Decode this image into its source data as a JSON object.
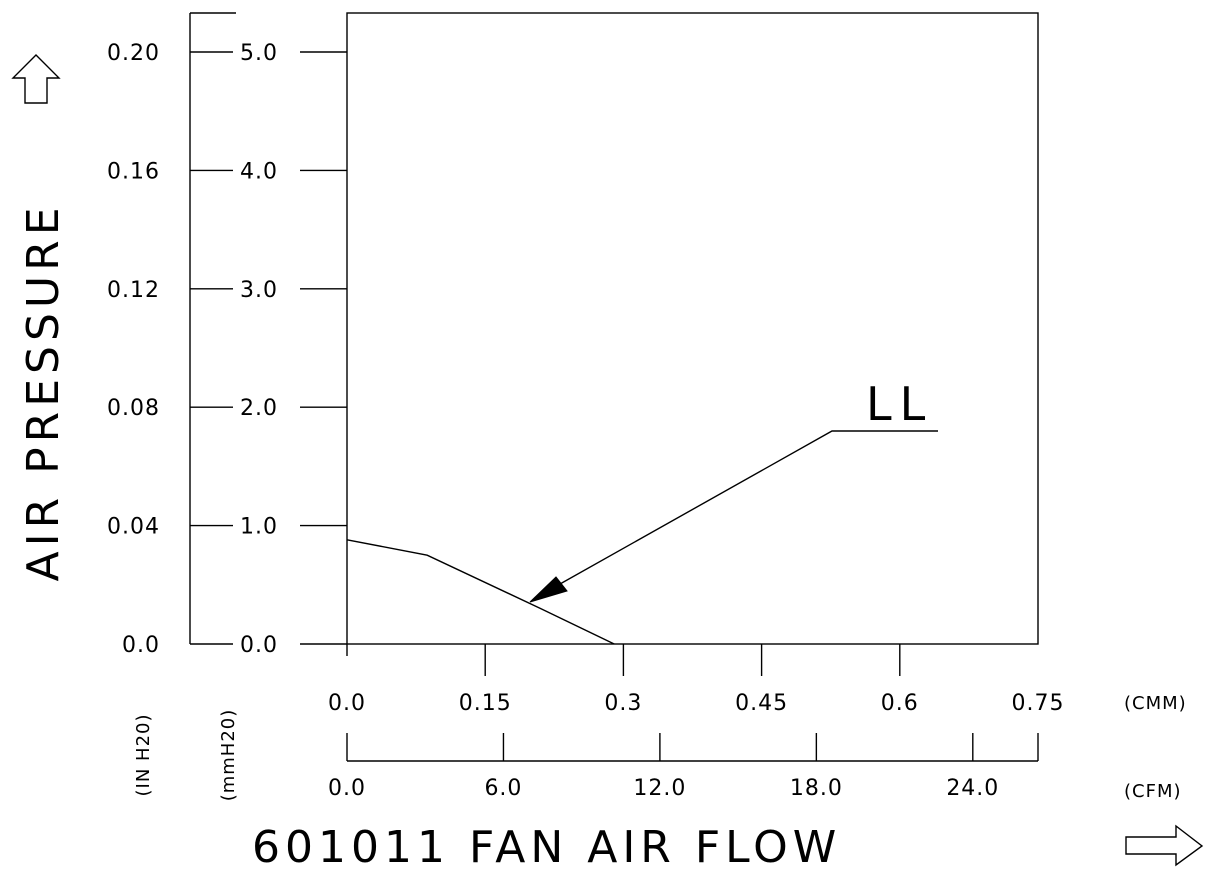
{
  "chart_data": {
    "type": "line",
    "title": "",
    "xlabel": "601011 FAN AIR FLOW",
    "ylabel": "AIR PRESSURE",
    "grid": false,
    "y_axes": {
      "mmh2o": {
        "unit": "(mmH20)",
        "ticks": [
          "0.0",
          "1.0",
          "2.0",
          "3.0",
          "4.0",
          "5.0"
        ],
        "range": [
          0,
          5.0
        ]
      },
      "inh2o": {
        "unit": "(IN H20)",
        "ticks": [
          "0.0",
          "0.04",
          "0.08",
          "0.12",
          "0.16",
          "0.20"
        ],
        "range": [
          0,
          0.2
        ]
      }
    },
    "x_axes": {
      "cmm": {
        "unit": "(CMM)",
        "ticks": [
          "0.0",
          "0.15",
          "0.3",
          "0.45",
          "0.6",
          "0.75"
        ],
        "range": [
          0,
          0.75
        ]
      },
      "cfm": {
        "unit": "(CFM)",
        "ticks": [
          "0.0",
          "6.0",
          "12.0",
          "18.0",
          "24.0"
        ],
        "range": [
          0,
          26.5
        ]
      }
    },
    "series": [
      {
        "name": "LL",
        "x_unit": "CMM",
        "y_unit": "mmH2O",
        "points": [
          [
            0.0,
            0.88
          ],
          [
            0.087,
            0.75
          ],
          [
            0.21,
            0.3
          ],
          [
            0.29,
            0.0
          ]
        ]
      }
    ]
  }
}
